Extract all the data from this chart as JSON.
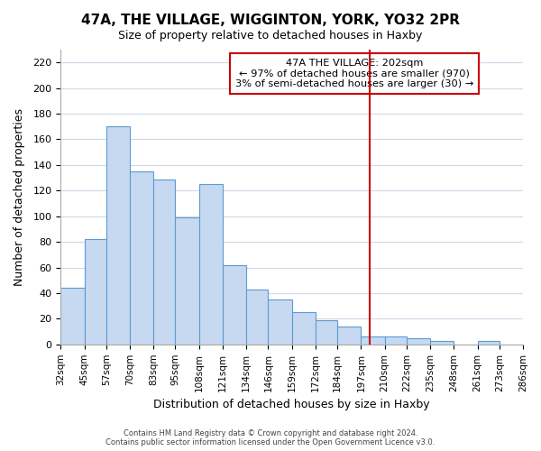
{
  "title": "47A, THE VILLAGE, WIGGINTON, YORK, YO32 2PR",
  "subtitle": "Size of property relative to detached houses in Haxby",
  "xlabel": "Distribution of detached houses by size in Haxby",
  "ylabel": "Number of detached properties",
  "bar_edges": [
    32,
    45,
    57,
    70,
    83,
    95,
    108,
    121,
    134,
    146,
    159,
    172,
    184,
    197,
    210,
    222,
    235,
    248,
    261,
    273,
    286
  ],
  "bar_labels": [
    "32sqm",
    "45sqm",
    "57sqm",
    "70sqm",
    "83sqm",
    "95sqm",
    "108sqm",
    "121sqm",
    "134sqm",
    "146sqm",
    "159sqm",
    "172sqm",
    "184sqm",
    "197sqm",
    "210sqm",
    "222sqm",
    "235sqm",
    "248sqm",
    "261sqm",
    "273sqm",
    "286sqm"
  ],
  "bar_heights": [
    44,
    82,
    170,
    135,
    129,
    99,
    125,
    62,
    43,
    35,
    25,
    19,
    14,
    6,
    6,
    5,
    3,
    0,
    3,
    0
  ],
  "bar_color": "#c6d9f0",
  "bar_edge_color": "#5b9bd5",
  "vline_x": 202,
  "vline_color": "#cc0000",
  "ylim": [
    0,
    230
  ],
  "annotation_title": "47A THE VILLAGE: 202sqm",
  "annotation_line1": "← 97% of detached houses are smaller (970)",
  "annotation_line2": "3% of semi-detached houses are larger (30) →",
  "annotation_box_color": "#ffffff",
  "annotation_box_edge_color": "#cc0000",
  "footer_line1": "Contains HM Land Registry data © Crown copyright and database right 2024.",
  "footer_line2": "Contains public sector information licensed under the Open Government Licence v3.0.",
  "background_color": "#ffffff",
  "grid_color": "#d0d8e8"
}
